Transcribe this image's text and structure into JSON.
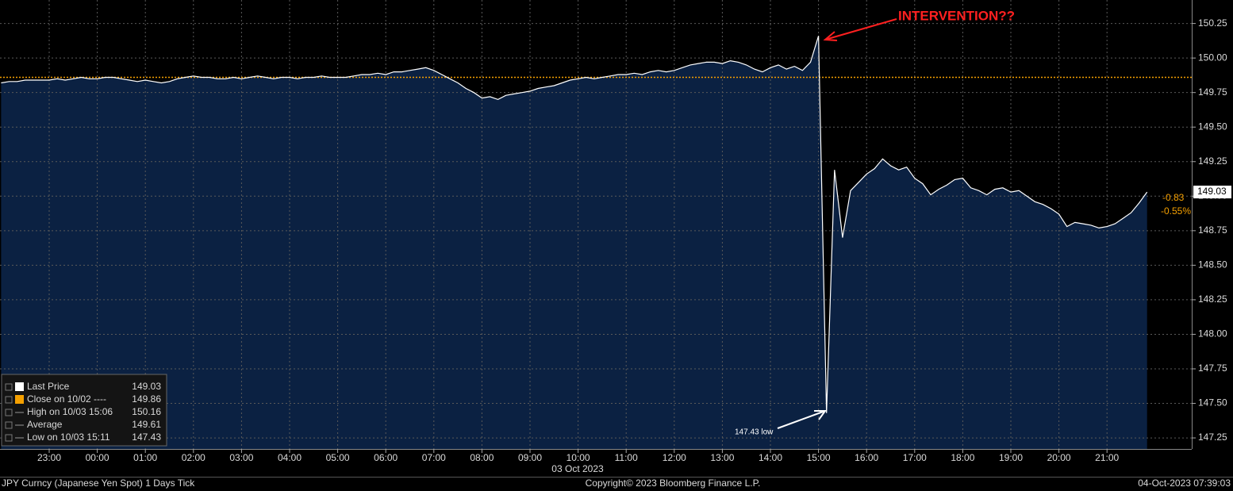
{
  "chart_data": {
    "type": "area",
    "annotation": "INTERVENTION??",
    "low_note": "147.43 low",
    "date_label": "03 Oct 2023",
    "footer": {
      "left": "JPY Curncy (Japanese Yen Spot) 1 Days  Tick",
      "center": "Copyright© 2023 Bloomberg Finance L.P.",
      "right": "04-Oct-2023 07:39:03"
    },
    "change_labels": [
      "-0.83",
      "-0.55%"
    ],
    "legend": [
      {
        "label": "Last Price",
        "value": 149.03,
        "color": "#ffffff"
      },
      {
        "label": "Close on 10/02 ----",
        "value": 149.86,
        "color": "#f5a000"
      },
      {
        "label": "High on 10/03 15:06",
        "value": 150.16
      },
      {
        "label": "Average",
        "value": 149.61
      },
      {
        "label": "Low on 10/03 15:11",
        "value": 147.43
      }
    ],
    "categories": [
      null,
      null,
      null,
      null,
      null,
      null,
      "23:00",
      null,
      null,
      null,
      null,
      null,
      "00:00",
      null,
      null,
      null,
      null,
      null,
      "01:00",
      null,
      null,
      null,
      null,
      null,
      "02:00",
      null,
      null,
      null,
      null,
      null,
      "03:00",
      null,
      null,
      null,
      null,
      null,
      "04:00",
      null,
      null,
      null,
      null,
      null,
      "05:00",
      null,
      null,
      null,
      null,
      null,
      "06:00",
      null,
      null,
      null,
      null,
      null,
      "07:00",
      null,
      null,
      null,
      null,
      null,
      "08:00",
      null,
      null,
      null,
      null,
      null,
      "09:00",
      null,
      null,
      null,
      null,
      null,
      "10:00",
      null,
      null,
      null,
      null,
      null,
      "11:00",
      null,
      null,
      null,
      null,
      null,
      "12:00",
      null,
      null,
      null,
      null,
      null,
      "13:00",
      null,
      null,
      null,
      null,
      null,
      "14:00",
      null,
      null,
      null,
      null,
      null,
      "15:00",
      null,
      null,
      null,
      null,
      null,
      "16:00",
      null,
      null,
      null,
      null,
      null,
      "17:00",
      null,
      null,
      null,
      null,
      null,
      "18:00",
      null,
      null,
      null,
      null,
      null,
      "19:00",
      null,
      null,
      null,
      null,
      null,
      "20:00",
      null,
      null,
      null,
      null,
      null,
      "21:00",
      null,
      null,
      null,
      null,
      null
    ],
    "series": [
      {
        "color": "#ffffff",
        "fill": "#0b2142",
        "values": [
          149.82,
          149.83,
          149.83,
          149.84,
          149.84,
          149.84,
          149.84,
          149.85,
          149.84,
          149.85,
          149.86,
          149.85,
          149.85,
          149.86,
          149.86,
          149.85,
          149.84,
          149.83,
          149.84,
          149.83,
          149.82,
          149.83,
          149.85,
          149.86,
          149.87,
          149.86,
          149.86,
          149.85,
          149.85,
          149.86,
          149.85,
          149.86,
          149.87,
          149.86,
          149.85,
          149.86,
          149.86,
          149.85,
          149.86,
          149.86,
          149.87,
          149.86,
          149.86,
          149.86,
          149.87,
          149.88,
          149.88,
          149.89,
          149.88,
          149.9,
          149.9,
          149.91,
          149.92,
          149.93,
          149.91,
          149.88,
          149.85,
          149.82,
          149.78,
          149.75,
          149.71,
          149.72,
          149.7,
          149.73,
          149.74,
          149.75,
          149.76,
          149.78,
          149.79,
          149.8,
          149.82,
          149.84,
          149.85,
          149.86,
          149.85,
          149.86,
          149.87,
          149.88,
          149.88,
          149.89,
          149.88,
          149.9,
          149.91,
          149.9,
          149.91,
          149.93,
          149.95,
          149.96,
          149.97,
          149.97,
          149.96,
          149.98,
          149.97,
          149.95,
          149.92,
          149.9,
          149.93,
          149.95,
          149.92,
          149.94,
          149.91,
          149.97,
          150.16,
          147.43,
          149.19,
          148.7,
          149.04,
          149.1,
          149.16,
          149.2,
          149.27,
          149.22,
          149.19,
          149.21,
          149.13,
          149.09,
          149.01,
          149.05,
          149.08,
          149.12,
          149.13,
          149.06,
          149.04,
          149.01,
          149.05,
          149.06,
          149.03,
          149.04,
          149.0,
          148.96,
          148.94,
          148.91,
          148.87,
          148.78,
          148.81,
          148.8,
          148.79,
          148.77,
          148.78,
          148.8,
          148.84,
          148.88,
          148.95,
          149.03
        ]
      }
    ],
    "ylim": [
      147.17,
      150.42
    ],
    "yticks": [
      147.25,
      {
        "value": 147.5,
        "label": "147.50"
      },
      147.75,
      {
        "value": 148,
        "label": "148.00"
      },
      148.25,
      {
        "value": 148.5,
        "label": "148.50"
      },
      148.75,
      {
        "value": 149,
        "label": "149.00"
      },
      149.25,
      {
        "value": 149.5,
        "label": "149.50"
      },
      149.75,
      {
        "value": 150,
        "label": "150.00"
      },
      150.25
    ],
    "grid": true
  }
}
